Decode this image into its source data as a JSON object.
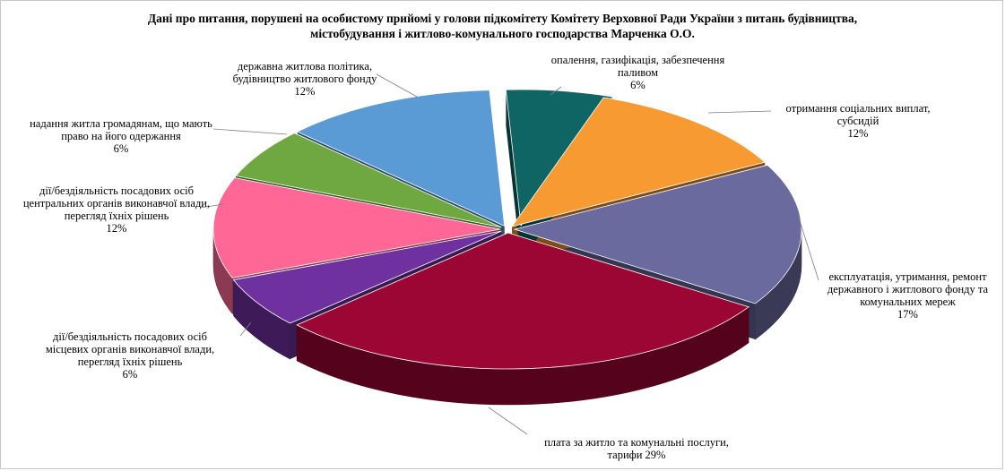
{
  "chart_data": {
    "type": "pie",
    "style": "3d-exploded",
    "title_lines": [
      "Дані про питання, порушені на особистому прийомі у голови підкомітету Комітету Верховної Ради України з питань будівництва,",
      "містобудування і житлово-комунального господарства Марченка  О.О."
    ],
    "slices": [
      {
        "label_lines": [
          "опалення, газифікація, забезпечення",
          "паливом",
          "6%"
        ],
        "value": 6,
        "color": "#0e6563"
      },
      {
        "label_lines": [
          "отримання соціальних виплат,",
          "субсидій",
          "12%"
        ],
        "value": 12,
        "color": "#f79a32"
      },
      {
        "label_lines": [
          "експлуатація, утримання, ремонт",
          "державного і житлового фонду та",
          "комунальних мереж",
          "17%"
        ],
        "value": 17,
        "color": "#6a6a9f"
      },
      {
        "label_lines": [
          "плата за житло та комунальні послуги,",
          "тарифи 29%"
        ],
        "value": 29,
        "color": "#9b0634"
      },
      {
        "label_lines": [
          "дії/бездіяльність  посадових осіб",
          "місцевих органів виконавчої влади,",
          "перегляд їхніх  рішень",
          "6%"
        ],
        "value": 6,
        "color": "#7031a0"
      },
      {
        "label_lines": [
          "дії/бездіяльність  посадових осіб",
          "центральних органів виконавчої влади,",
          "перегляд їхніх  рішень",
          "12%"
        ],
        "value": 12,
        "color": "#ff6797"
      },
      {
        "label_lines": [
          "надання житла громадянам, що мають",
          "право на його одержання",
          "6%"
        ],
        "value": 6,
        "color": "#6fa840"
      },
      {
        "label_lines": [
          "державна житлова політика,",
          "будівництво житлового фонду",
          "12%"
        ],
        "value": 12,
        "color": "#5b9bd5"
      }
    ]
  }
}
